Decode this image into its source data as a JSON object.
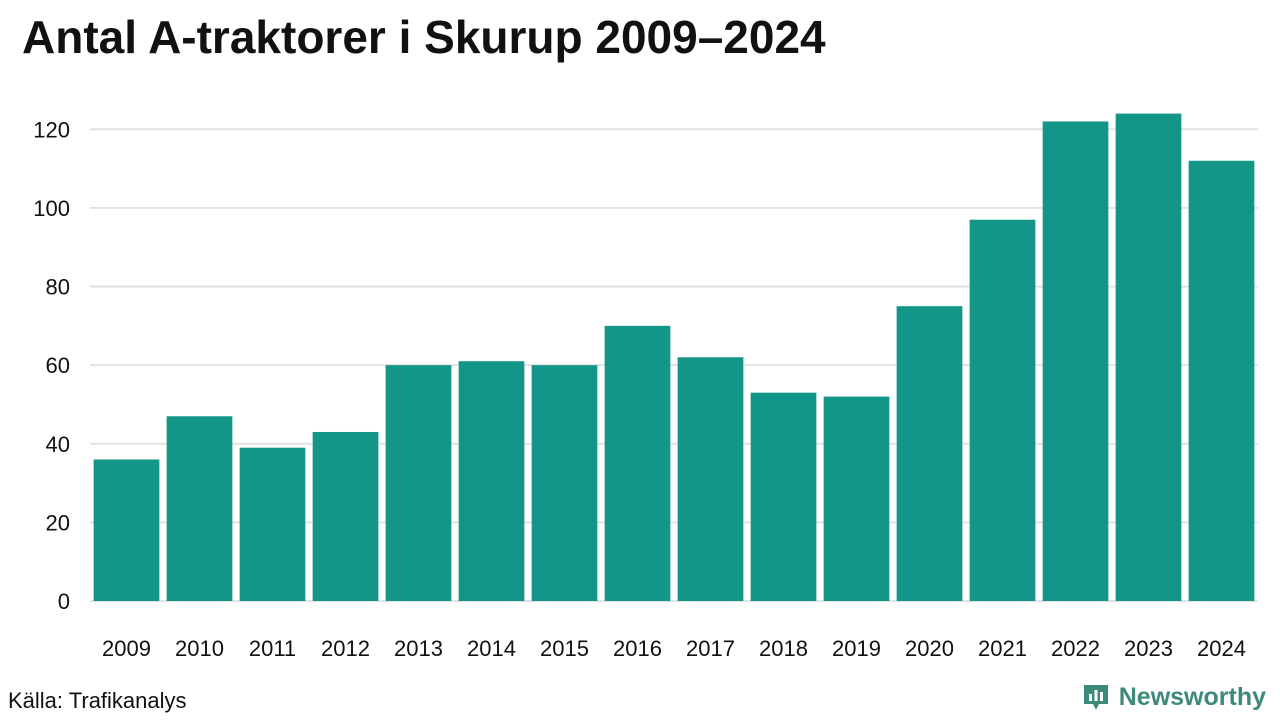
{
  "title": "Antal A-traktorer i Skurup 2009–2024",
  "source": "Källa: Trafikanalys",
  "brand": {
    "name": "Newsworthy",
    "icon": "newsworthy-logo-icon"
  },
  "colors": {
    "bar": "#139688",
    "grid": "#e2e2e2",
    "brand": "#3d8a7a"
  },
  "chart_data": {
    "type": "bar",
    "title": "Antal A-traktorer i Skurup 2009–2024",
    "xlabel": "",
    "ylabel": "",
    "categories": [
      "2009",
      "2010",
      "2011",
      "2012",
      "2013",
      "2014",
      "2015",
      "2016",
      "2017",
      "2018",
      "2019",
      "2020",
      "2021",
      "2022",
      "2023",
      "2024"
    ],
    "values": [
      36,
      47,
      39,
      43,
      60,
      61,
      60,
      70,
      62,
      53,
      52,
      75,
      97,
      122,
      124,
      112
    ],
    "ylim": [
      0,
      130
    ],
    "yticks": [
      0,
      20,
      40,
      60,
      80,
      100,
      120
    ],
    "grid": true,
    "legend": "none"
  }
}
